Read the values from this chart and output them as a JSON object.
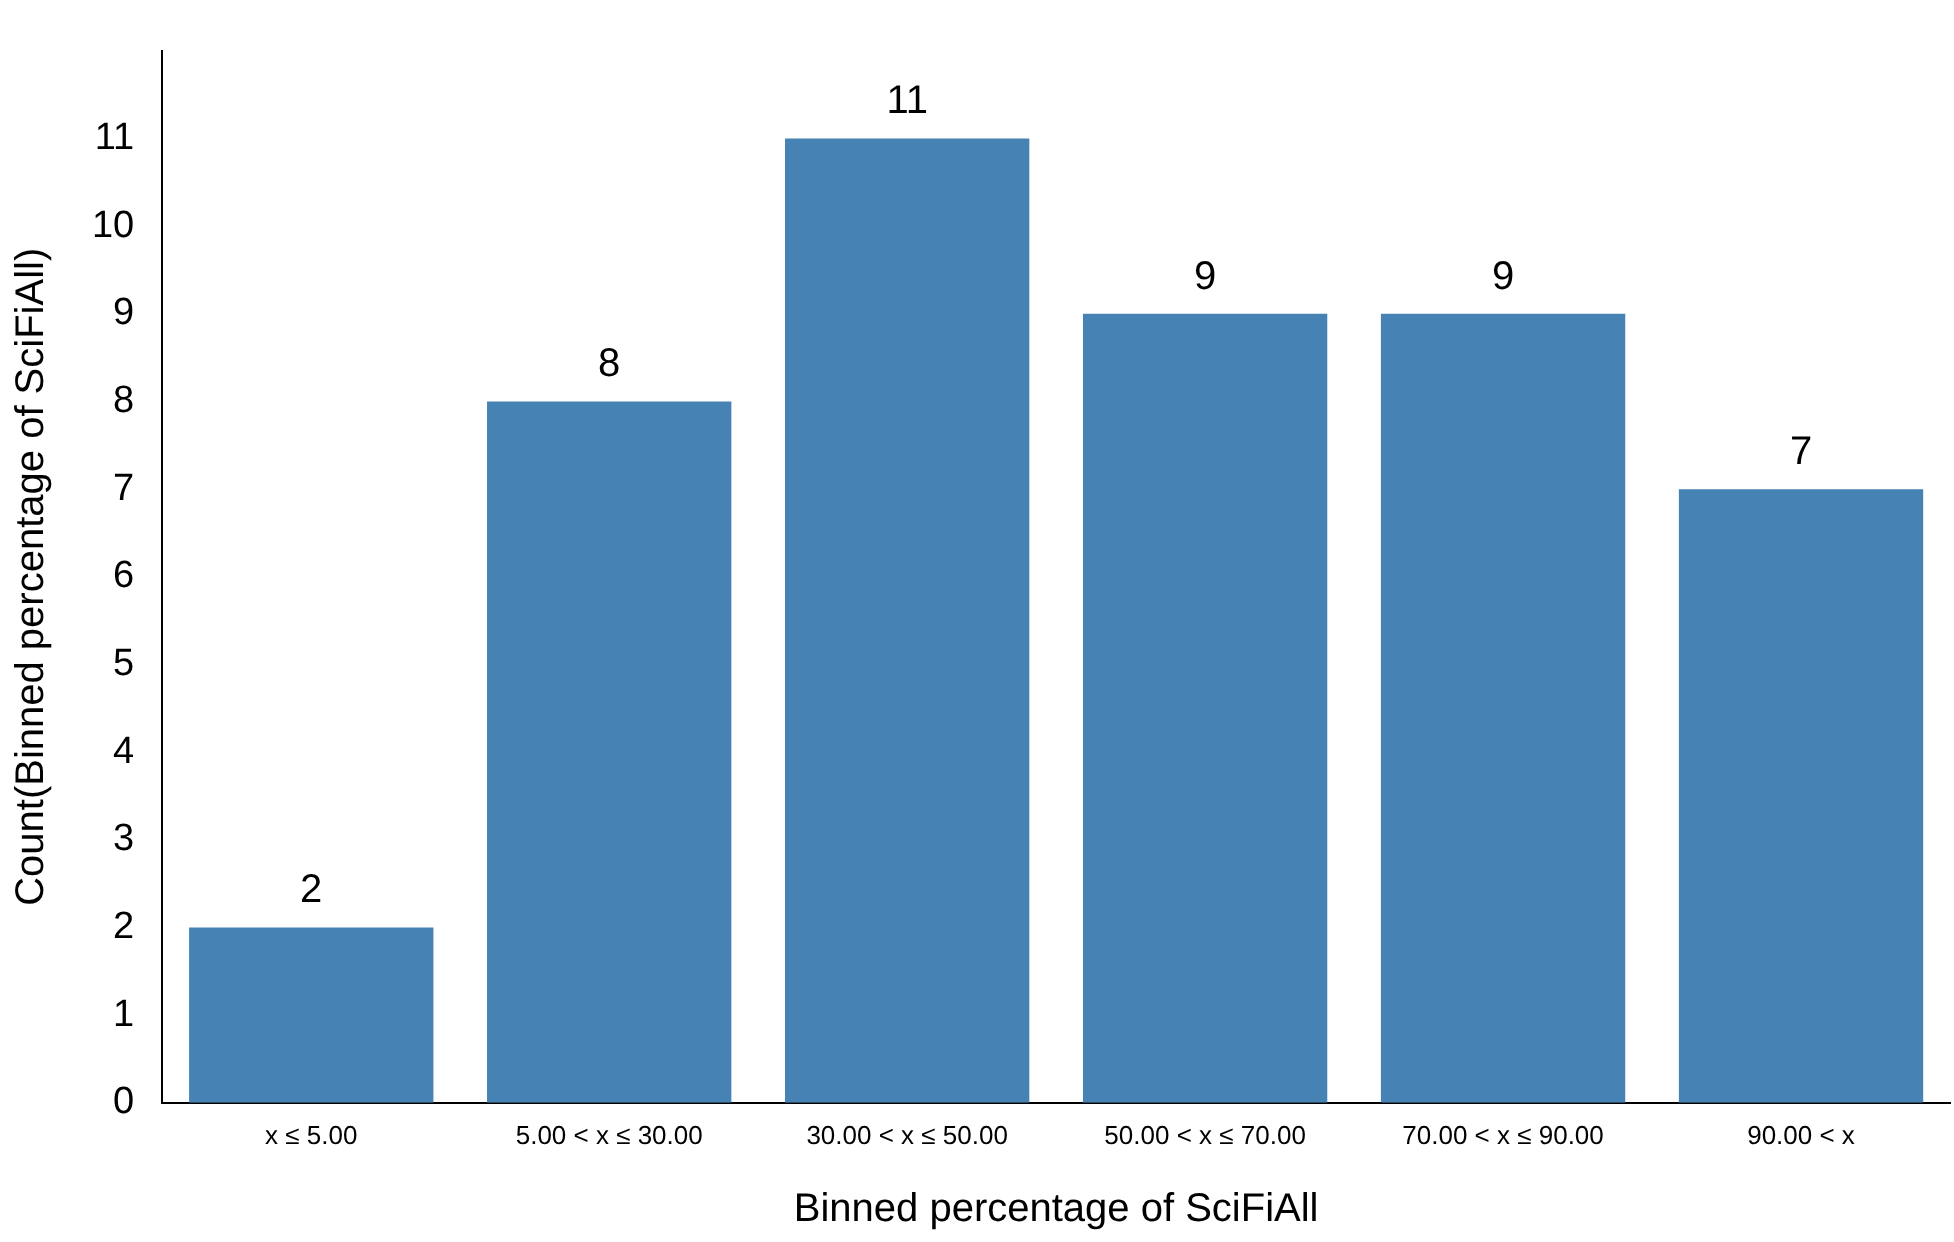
{
  "chart_data": {
    "type": "bar",
    "xlabel": "Binned percentage of SciFiAll",
    "ylabel": "Count(Binned percentage of SciFiAll)",
    "categories": [
      "x ≤ 5.00",
      "5.00 < x ≤ 30.00",
      "30.00 < x ≤ 50.00",
      "50.00 < x ≤ 70.00",
      "70.00 < x ≤ 90.00",
      "90.00 < x"
    ],
    "values": [
      2,
      8,
      11,
      9,
      9,
      7
    ],
    "color": "#4682b4",
    "ylim": [
      0,
      12
    ],
    "yticks": [
      0,
      1,
      2,
      3,
      4,
      5,
      6,
      7,
      8,
      9,
      10,
      11
    ],
    "grid": false,
    "legend": false,
    "data_labels": true
  }
}
